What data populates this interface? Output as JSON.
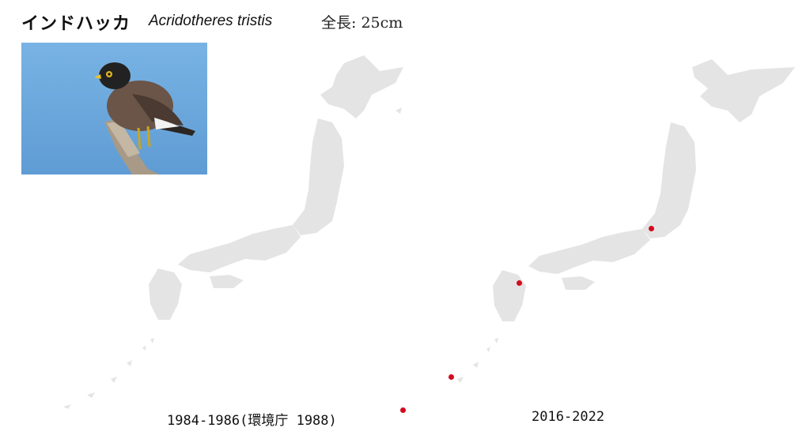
{
  "species": {
    "japanese_name": "インドハッカ",
    "scientific_name": "Acridotheres tristis",
    "length_label": "全長: 25cm"
  },
  "photo": {
    "icon": "myna-bird-photo"
  },
  "maps": [
    {
      "id": "left",
      "caption": "1984-1986(環境庁 1988)",
      "records": []
    },
    {
      "id": "right",
      "caption": "2016-2022",
      "records": [
        "kanto",
        "kyushu",
        "okinawa",
        "sakishima"
      ]
    }
  ],
  "colors": {
    "land": "#e4e4e4",
    "record_dot": "#d40a1e",
    "sky": "#6ea9dc"
  }
}
